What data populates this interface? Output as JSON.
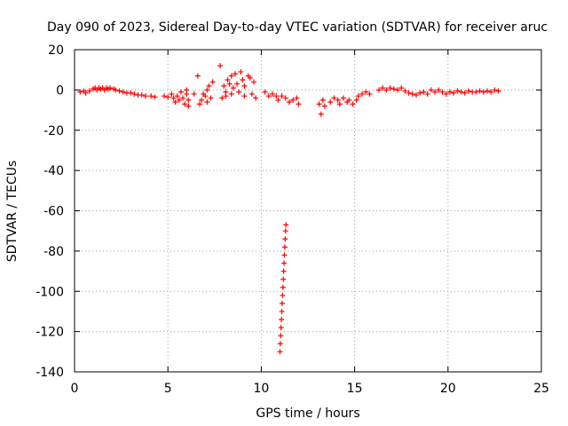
{
  "chart_data": {
    "type": "scatter",
    "title": "Day 090 of 2023, Sidereal Day-to-day VTEC variation (SDTVAR) for receiver aruc",
    "xlabel": "GPS time / hours",
    "ylabel": "SDTVAR / TECUs",
    "xlim": [
      0,
      25
    ],
    "ylim": [
      -140,
      20
    ],
    "xticks": [
      "0",
      "5",
      "10",
      "15",
      "20",
      "25"
    ],
    "yticks": [
      "20",
      "0",
      "-20",
      "-40",
      "-60",
      "-80",
      "-100",
      "-120",
      "-140"
    ],
    "grid": true,
    "marker": "+",
    "color": "#ff0000",
    "series": [
      {
        "name": "SDTVAR",
        "points": [
          [
            0.3,
            -1
          ],
          [
            0.5,
            -0.5
          ],
          [
            0.6,
            -1.5
          ],
          [
            0.8,
            -0.5
          ],
          [
            1.0,
            0.5
          ],
          [
            1.1,
            1
          ],
          [
            1.2,
            0
          ],
          [
            1.3,
            1
          ],
          [
            1.4,
            0.5
          ],
          [
            1.5,
            1
          ],
          [
            1.6,
            0
          ],
          [
            1.7,
            1
          ],
          [
            1.8,
            0.5
          ],
          [
            1.9,
            1
          ],
          [
            2.1,
            0.5
          ],
          [
            2.2,
            0
          ],
          [
            2.4,
            -0.5
          ],
          [
            2.6,
            -1
          ],
          [
            2.8,
            -1.5
          ],
          [
            3.0,
            -1.5
          ],
          [
            3.2,
            -2
          ],
          [
            3.4,
            -2.5
          ],
          [
            3.6,
            -2.5
          ],
          [
            3.8,
            -3
          ],
          [
            4.1,
            -3
          ],
          [
            4.3,
            -3.5
          ],
          [
            4.8,
            -3
          ],
          [
            5.0,
            -3.5
          ],
          [
            5.2,
            -2
          ],
          [
            5.3,
            -4
          ],
          [
            5.4,
            -6
          ],
          [
            5.5,
            -3
          ],
          [
            5.6,
            -5
          ],
          [
            5.7,
            -1
          ],
          [
            5.8,
            -4
          ],
          [
            5.9,
            -7
          ],
          [
            6.0,
            -2
          ],
          [
            6.0,
            0
          ],
          [
            6.1,
            -5
          ],
          [
            6.1,
            -8
          ],
          [
            6.4,
            -2
          ],
          [
            6.6,
            7
          ],
          [
            6.7,
            -7
          ],
          [
            6.8,
            -5
          ],
          [
            6.9,
            -2
          ],
          [
            7.0,
            -3
          ],
          [
            7.1,
            0
          ],
          [
            7.1,
            -6
          ],
          [
            7.2,
            2
          ],
          [
            7.3,
            -4
          ],
          [
            7.4,
            4
          ],
          [
            7.8,
            12
          ],
          [
            7.9,
            -4
          ],
          [
            8.0,
            2
          ],
          [
            8.1,
            -1
          ],
          [
            8.1,
            -3
          ],
          [
            8.2,
            5
          ],
          [
            8.3,
            3
          ],
          [
            8.4,
            -2
          ],
          [
            8.4,
            7
          ],
          [
            8.5,
            1
          ],
          [
            8.6,
            8
          ],
          [
            8.7,
            3
          ],
          [
            8.8,
            -1
          ],
          [
            8.9,
            9
          ],
          [
            9.0,
            5
          ],
          [
            9.1,
            -3
          ],
          [
            9.1,
            2
          ],
          [
            9.3,
            7
          ],
          [
            9.4,
            6
          ],
          [
            9.5,
            -2
          ],
          [
            9.6,
            4
          ],
          [
            9.7,
            -4
          ],
          [
            10.2,
            -1
          ],
          [
            10.4,
            -3
          ],
          [
            10.6,
            -2
          ],
          [
            10.8,
            -3
          ],
          [
            10.9,
            -5
          ],
          [
            11.1,
            -3
          ],
          [
            11.3,
            -4
          ],
          [
            11.5,
            -6
          ],
          [
            11.7,
            -5
          ],
          [
            11.9,
            -4
          ],
          [
            12.0,
            -7
          ],
          [
            13.1,
            -7
          ],
          [
            13.2,
            -12
          ],
          [
            13.3,
            -5
          ],
          [
            13.4,
            -8
          ],
          [
            13.7,
            -6
          ],
          [
            13.9,
            -4
          ],
          [
            14.1,
            -5
          ],
          [
            14.2,
            -7
          ],
          [
            14.4,
            -4
          ],
          [
            14.6,
            -6
          ],
          [
            14.7,
            -5
          ],
          [
            14.9,
            -7
          ],
          [
            15.1,
            -5
          ],
          [
            15.2,
            -3
          ],
          [
            15.4,
            -2
          ],
          [
            15.6,
            -1
          ],
          [
            15.8,
            -2
          ],
          [
            16.3,
            0
          ],
          [
            16.5,
            1
          ],
          [
            16.7,
            0
          ],
          [
            16.9,
            1
          ],
          [
            17.1,
            0.5
          ],
          [
            17.3,
            0
          ],
          [
            17.5,
            1
          ],
          [
            17.7,
            -0.5
          ],
          [
            17.9,
            -1.5
          ],
          [
            18.1,
            -2
          ],
          [
            18.3,
            -2.5
          ],
          [
            18.5,
            -1.5
          ],
          [
            18.7,
            -1
          ],
          [
            18.9,
            -2
          ],
          [
            19.1,
            0
          ],
          [
            19.3,
            -1
          ],
          [
            19.5,
            0
          ],
          [
            19.7,
            -1
          ],
          [
            19.9,
            -2
          ],
          [
            20.1,
            -1
          ],
          [
            20.3,
            -1.5
          ],
          [
            20.5,
            -0.5
          ],
          [
            20.7,
            -1
          ],
          [
            20.9,
            -1.5
          ],
          [
            21.1,
            -0.5
          ],
          [
            21.3,
            -1
          ],
          [
            21.5,
            -1
          ],
          [
            21.7,
            -0.5
          ],
          [
            21.9,
            -1
          ],
          [
            22.1,
            -0.5
          ],
          [
            22.3,
            -1
          ],
          [
            22.5,
            0
          ],
          [
            22.7,
            -0.5
          ],
          [
            11.0,
            -130
          ],
          [
            11.02,
            -126
          ],
          [
            11.04,
            -122
          ],
          [
            11.06,
            -118
          ],
          [
            11.08,
            -114
          ],
          [
            11.1,
            -110
          ],
          [
            11.12,
            -106
          ],
          [
            11.14,
            -102
          ],
          [
            11.16,
            -98
          ],
          [
            11.18,
            -94
          ],
          [
            11.2,
            -90
          ],
          [
            11.22,
            -86
          ],
          [
            11.24,
            -82
          ],
          [
            11.26,
            -78
          ],
          [
            11.28,
            -74
          ],
          [
            11.3,
            -70
          ],
          [
            11.32,
            -67
          ]
        ]
      }
    ]
  }
}
